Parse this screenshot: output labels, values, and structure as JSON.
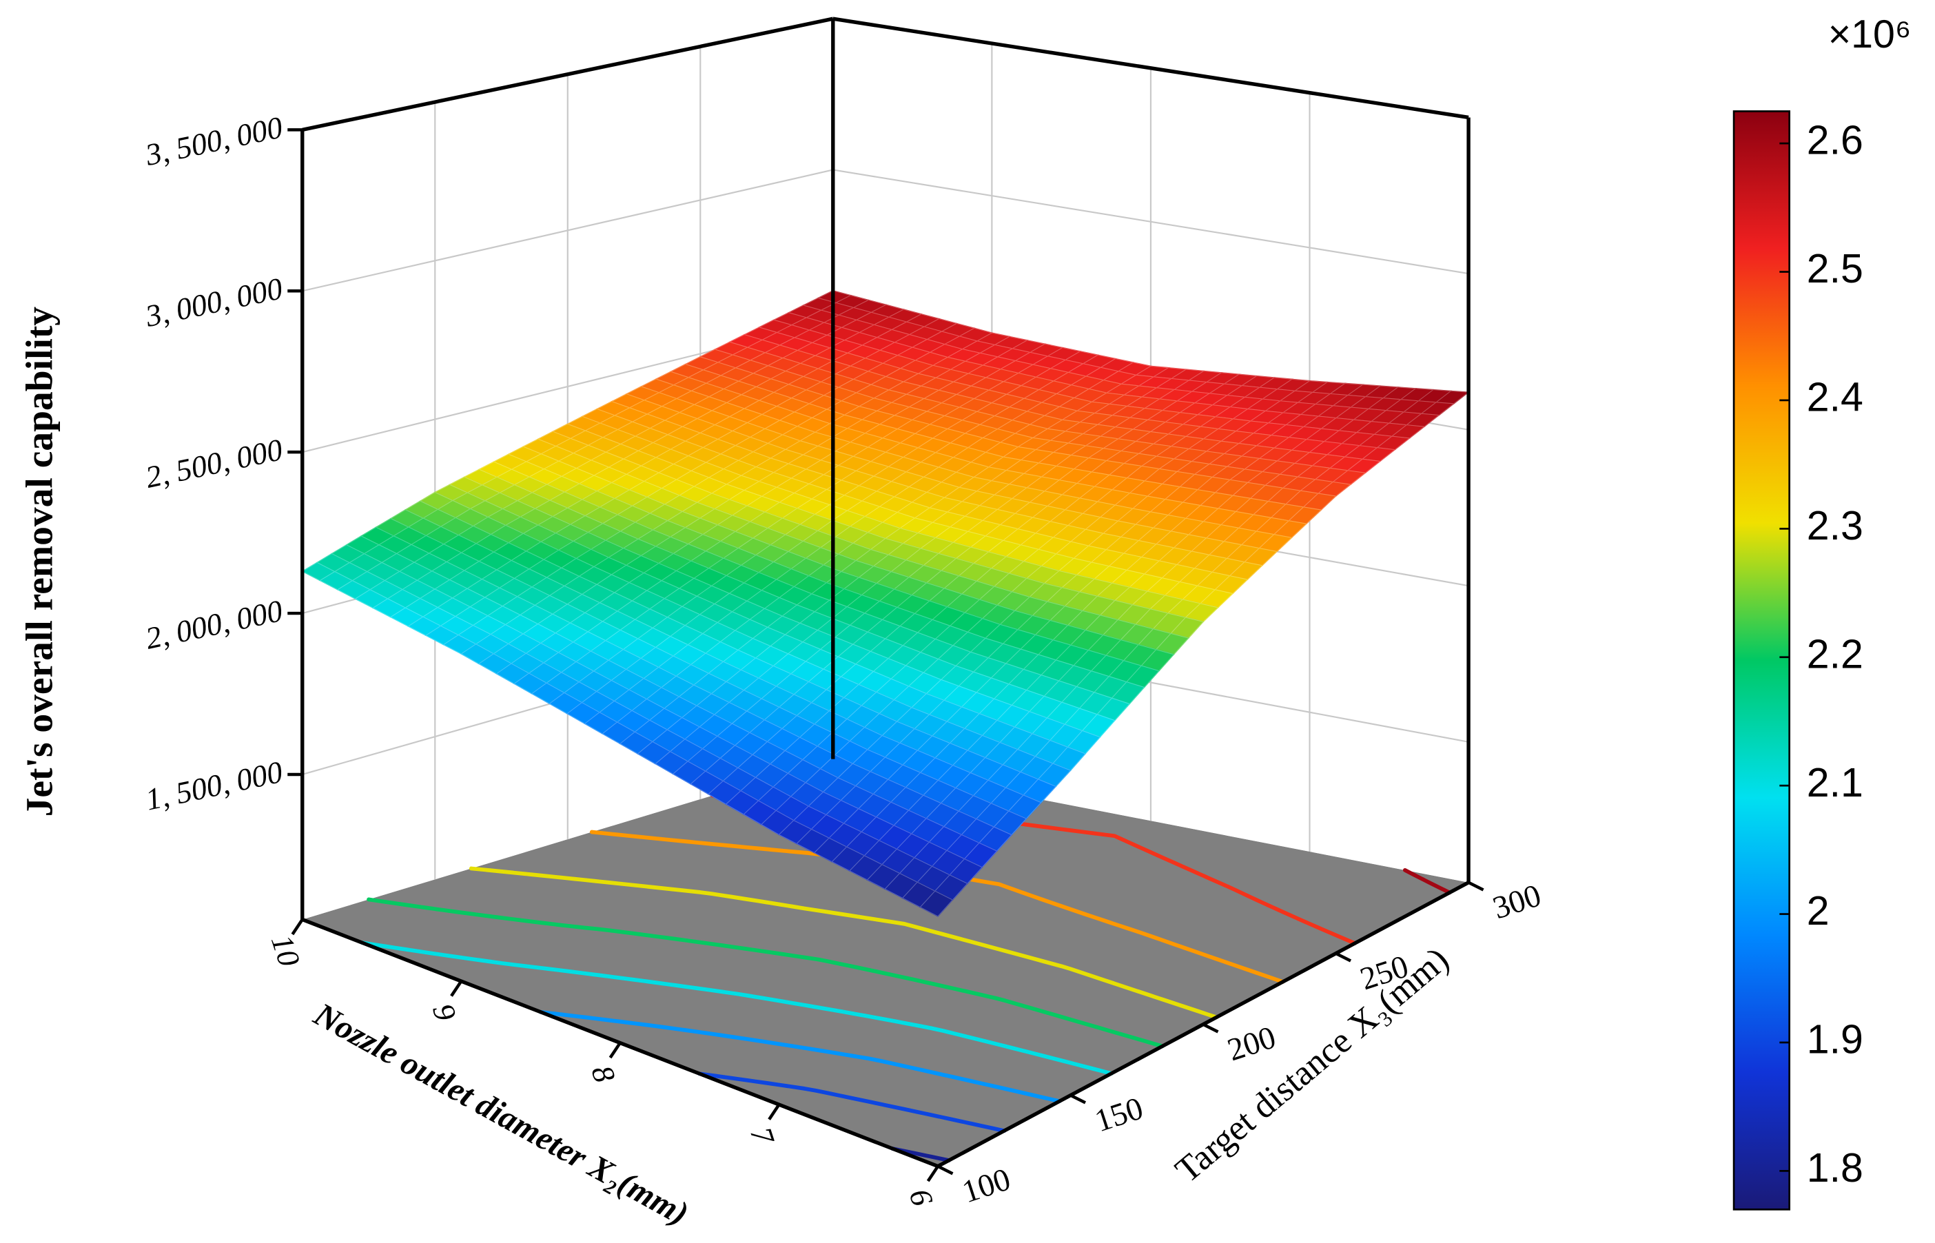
{
  "chart_data": {
    "type": "surface3d",
    "z_label": "Jet's overall removal capability",
    "x_label": "Nozzle outlet diameter X₂(mm)",
    "y_label": "Target distance X₃(mm)",
    "x": [
      6,
      7,
      8,
      9,
      10
    ],
    "y": [
      100,
      150,
      200,
      250,
      300
    ],
    "z": [
      [
        1780000,
        2020000,
        2280000,
        2480000,
        2620000
      ],
      [
        1850000,
        2060000,
        2270000,
        2450000,
        2570000
      ],
      [
        1950000,
        2120000,
        2280000,
        2420000,
        2530000
      ],
      [
        2050000,
        2190000,
        2320000,
        2440000,
        2550000
      ],
      [
        2130000,
        2270000,
        2380000,
        2490000,
        2600000
      ]
    ],
    "xlim": [
      6,
      10
    ],
    "xticks": [
      6,
      7,
      8,
      9,
      10
    ],
    "ylim": [
      100,
      300
    ],
    "yticks": [
      100,
      150,
      200,
      250,
      300
    ],
    "zlim": [
      1050000,
      3500000
    ],
    "zticks": [
      {
        "value": 1500000,
        "label": "1, 500, 000"
      },
      {
        "value": 2000000,
        "label": "2, 000, 000"
      },
      {
        "value": 2500000,
        "label": "2, 500, 000"
      },
      {
        "value": 3000000,
        "label": "3, 000, 000"
      },
      {
        "value": 3500000,
        "label": "3, 500, 000"
      }
    ],
    "grid": true,
    "floor_color": "#808080",
    "colorbar": {
      "lim": [
        1770000,
        2625000
      ],
      "multiplier": "×10⁶",
      "ticks": [
        {
          "value": 1800000,
          "label": "1.8"
        },
        {
          "value": 1900000,
          "label": "1.9"
        },
        {
          "value": 2000000,
          "label": "2"
        },
        {
          "value": 2100000,
          "label": "2.1"
        },
        {
          "value": 2200000,
          "label": "2.2"
        },
        {
          "value": 2300000,
          "label": "2.3"
        },
        {
          "value": 2400000,
          "label": "2.4"
        },
        {
          "value": 2500000,
          "label": "2.5"
        },
        {
          "value": 2600000,
          "label": "2.6"
        }
      ],
      "colors": [
        "#1a1a78",
        "#1034d8",
        "#0088ff",
        "#00e0f0",
        "#00c864",
        "#f0e000",
        "#ff9000",
        "#f02020",
        "#8c0010"
      ]
    }
  }
}
